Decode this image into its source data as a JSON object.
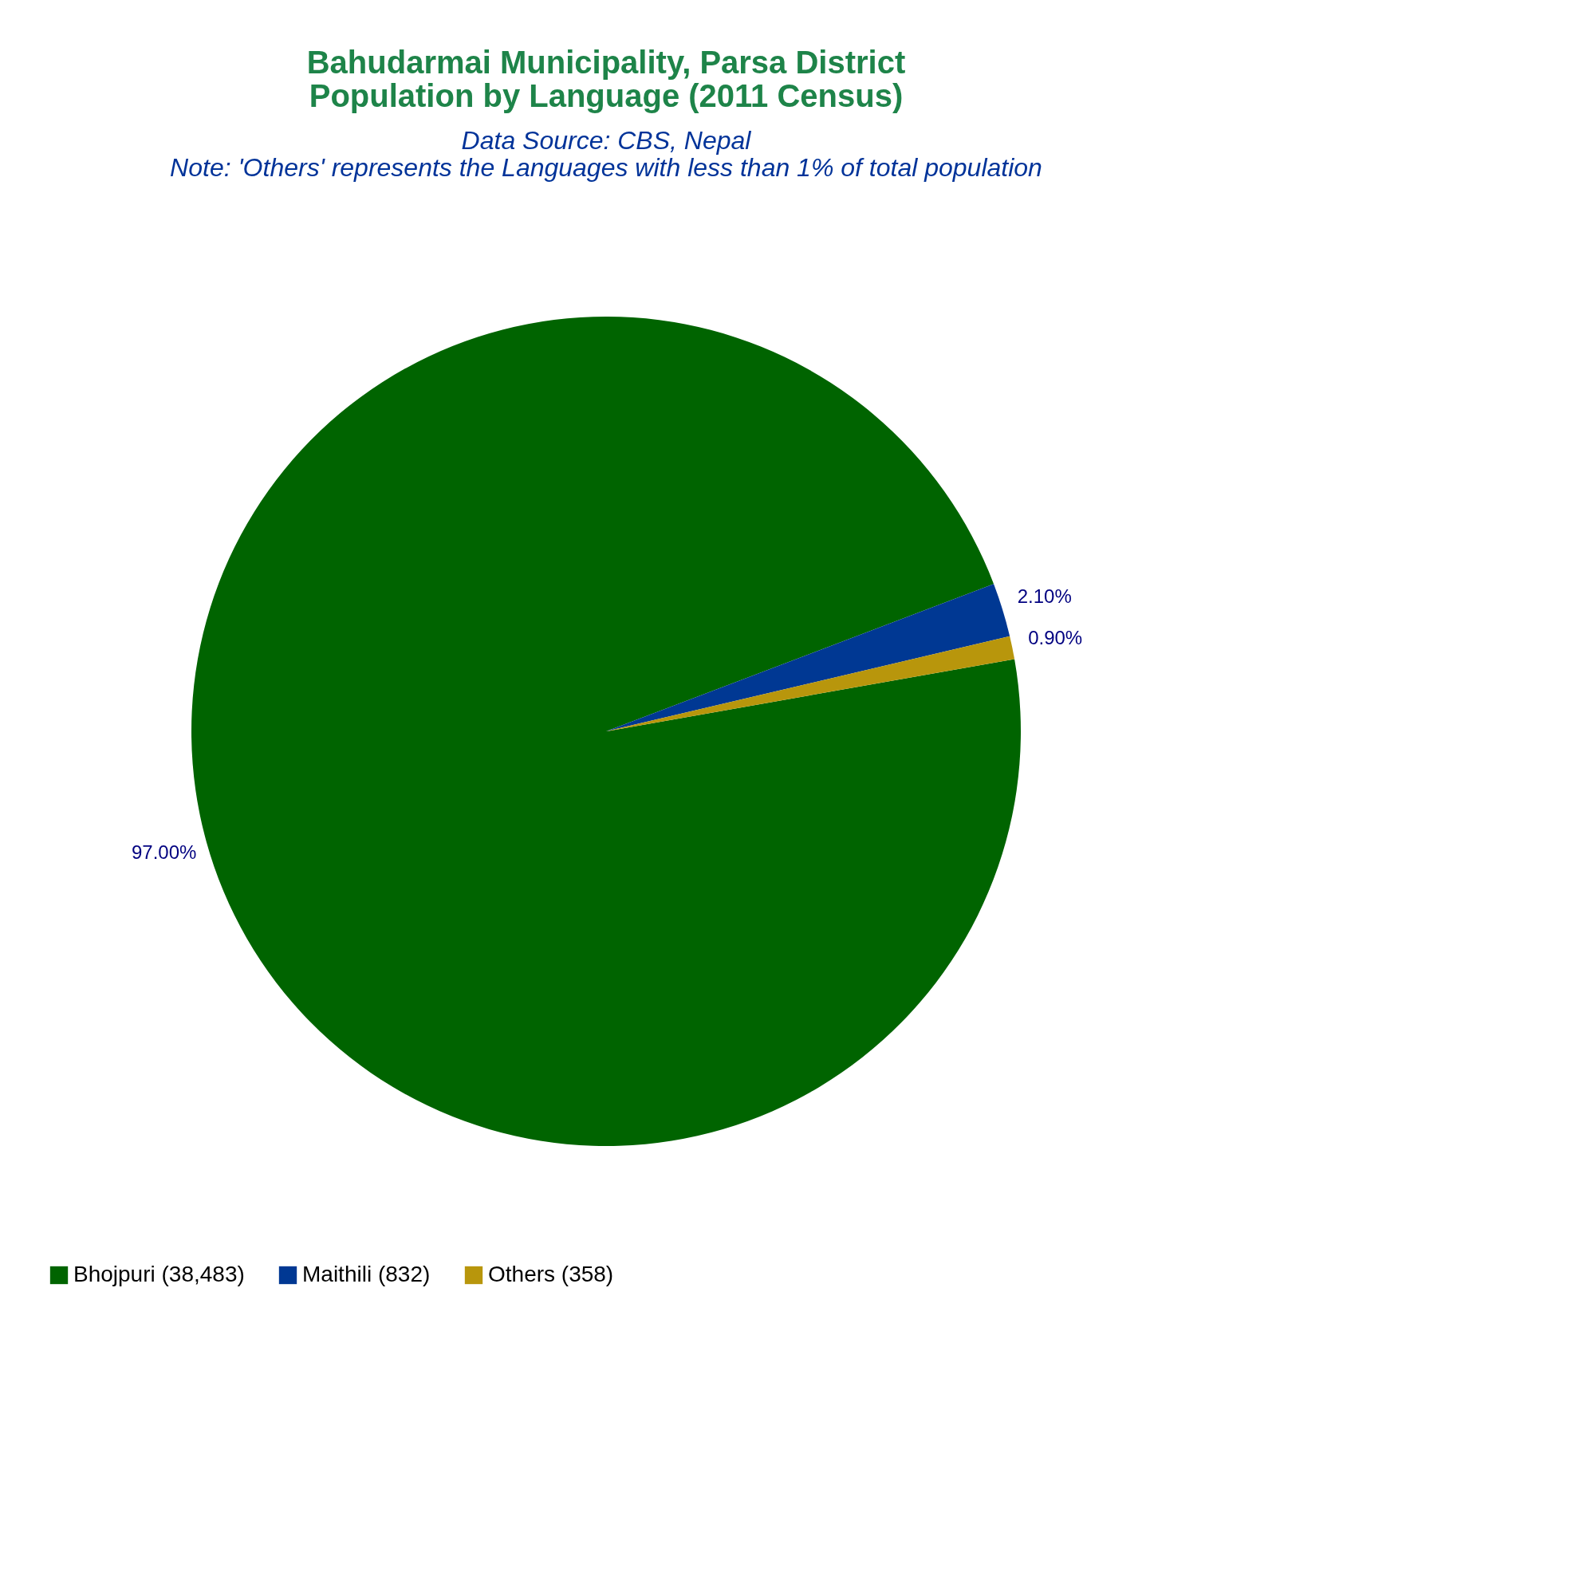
{
  "chart_data": {
    "type": "pie",
    "title": [
      "Bahudarmai Municipality, Parsa District",
      "Population by Language (2011 Census)"
    ],
    "subtitle": "Data Source: CBS, Nepal",
    "annotations": [
      "Note: 'Others' represents the Languages with less than 1% of total population"
    ],
    "categories": [
      "Bhojpuri (38,483)",
      "Maithili (832)",
      "Others (358)"
    ],
    "values": [
      97.0,
      2.1,
      0.9
    ],
    "value_labels": [
      "97.00%",
      "2.10%",
      "0.90%"
    ],
    "colors": [
      "#006400",
      "#003893",
      "#b8960c"
    ],
    "legend": "bottom"
  }
}
